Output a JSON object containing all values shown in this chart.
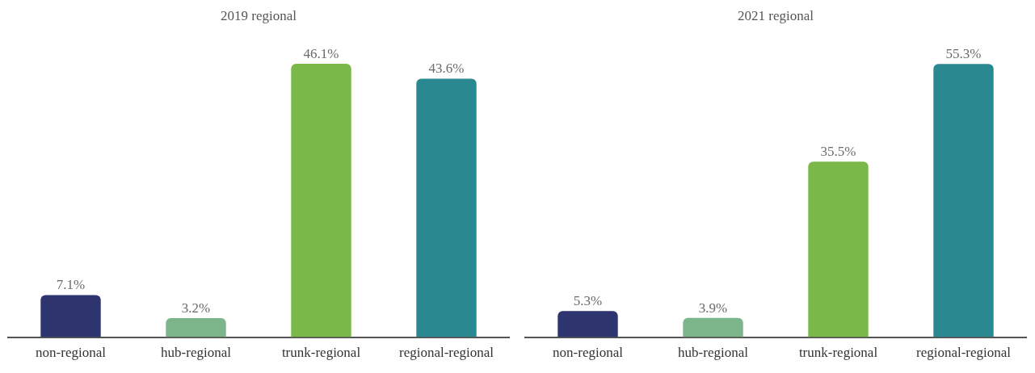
{
  "chart_data": [
    {
      "type": "bar",
      "title": "2019 regional",
      "categories": [
        "non-regional",
        "hub-regional",
        "trunk-regional",
        "regional-regional"
      ],
      "values": [
        7.1,
        3.2,
        46.1,
        43.6
      ],
      "value_labels": [
        "7.1%",
        "3.2%",
        "46.1%",
        "43.6%"
      ],
      "colors": [
        "#2e356e",
        "#7db58a",
        "#7ab84a",
        "#2a8891"
      ]
    },
    {
      "type": "bar",
      "title": "2021 regional",
      "categories": [
        "non-regional",
        "hub-regional",
        "trunk-regional",
        "regional-regional"
      ],
      "values": [
        5.3,
        3.9,
        35.5,
        55.3
      ],
      "value_labels": [
        "5.3%",
        "3.9%",
        "35.5%",
        "55.3%"
      ],
      "colors": [
        "#2e356e",
        "#7db58a",
        "#7ab84a",
        "#2a8891"
      ]
    }
  ]
}
